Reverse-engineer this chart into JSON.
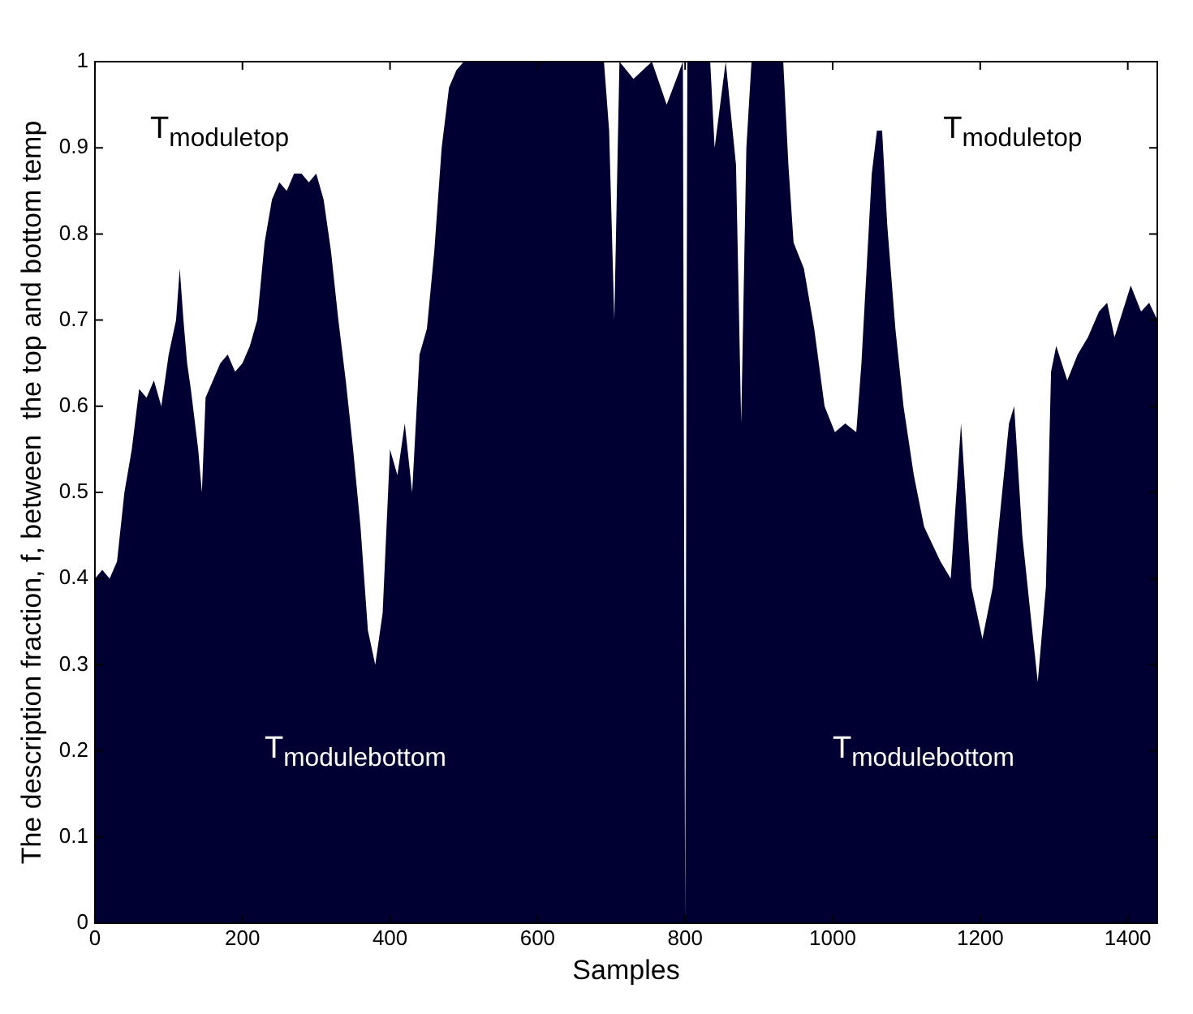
{
  "chart_data": {
    "type": "area",
    "xlabel": "Samples",
    "ylabel": "The description fraction, f, between  the top and bottom temp",
    "annotations": [
      "T$_{moduletop}$",
      "T$_{moduletop}$",
      "T$_{modulebottom}$",
      "T$_{modulebottom}$"
    ],
    "series": [
      {
        "color": "#000033",
        "x": [
          0,
          10,
          20,
          30,
          40,
          50,
          60,
          70,
          80,
          90,
          100,
          110,
          115,
          120,
          125,
          130,
          140,
          145,
          150,
          160,
          170,
          180,
          190,
          200,
          210,
          220,
          230,
          240,
          250,
          260,
          270,
          280,
          290,
          300,
          310,
          320,
          330,
          340,
          350,
          360,
          370,
          380,
          390,
          400,
          410,
          420,
          430,
          440,
          450,
          460,
          470,
          480,
          490,
          500,
          550,
          600,
          632,
          690,
          697,
          704,
          711,
          730,
          755,
          775,
          797,
          800,
          803,
          834,
          840,
          855,
          869,
          876,
          883,
          890,
          933,
          940,
          947,
          961,
          975,
          989,
          1003,
          1017,
          1032,
          1039,
          1046,
          1053,
          1060,
          1067,
          1074,
          1085,
          1096,
          1110,
          1124,
          1146,
          1160,
          1174,
          1188,
          1203,
          1217,
          1239,
          1246,
          1257,
          1268,
          1278,
          1289,
          1296,
          1303,
          1318,
          1332,
          1346,
          1361,
          1372,
          1382,
          1404,
          1418,
          1429,
          1440
        ],
        "values": [
          0.4,
          0.41,
          0.4,
          0.42,
          0.5,
          0.55,
          0.62,
          0.61,
          0.63,
          0.6,
          0.66,
          0.7,
          0.76,
          0.7,
          0.65,
          0.62,
          0.55,
          0.5,
          0.61,
          0.63,
          0.65,
          0.66,
          0.64,
          0.65,
          0.67,
          0.7,
          0.79,
          0.84,
          0.86,
          0.85,
          0.87,
          0.87,
          0.86,
          0.87,
          0.84,
          0.78,
          0.7,
          0.63,
          0.55,
          0.46,
          0.34,
          0.3,
          0.36,
          0.55,
          0.52,
          0.58,
          0.5,
          0.66,
          0.69,
          0.78,
          0.9,
          0.97,
          0.99,
          1,
          1,
          1,
          1,
          1,
          0.92,
          0.7,
          1,
          0.98,
          1,
          0.95,
          1,
          0,
          1,
          1,
          0.9,
          1,
          0.88,
          0.58,
          0.9,
          1,
          1,
          0.88,
          0.79,
          0.76,
          0.69,
          0.6,
          0.57,
          0.58,
          0.57,
          0.65,
          0.76,
          0.87,
          0.92,
          0.92,
          0.81,
          0.69,
          0.6,
          0.52,
          0.46,
          0.42,
          0.4,
          0.58,
          0.39,
          0.33,
          0.39,
          0.58,
          0.6,
          0.45,
          0.36,
          0.28,
          0.39,
          0.64,
          0.67,
          0.63,
          0.66,
          0.68,
          0.71,
          0.72,
          0.68,
          0.74,
          0.71,
          0.72,
          0.7
        ]
      }
    ],
    "xlim": [
      0,
      1440
    ],
    "xticks": [
      0,
      200,
      400,
      600,
      800,
      1000,
      1200,
      1400
    ],
    "ylim": [
      0,
      1
    ],
    "yticks": [
      0,
      0.1,
      0.2,
      0.3,
      0.4,
      0.5,
      0.6,
      0.7,
      0.8,
      0.9,
      1
    ]
  }
}
